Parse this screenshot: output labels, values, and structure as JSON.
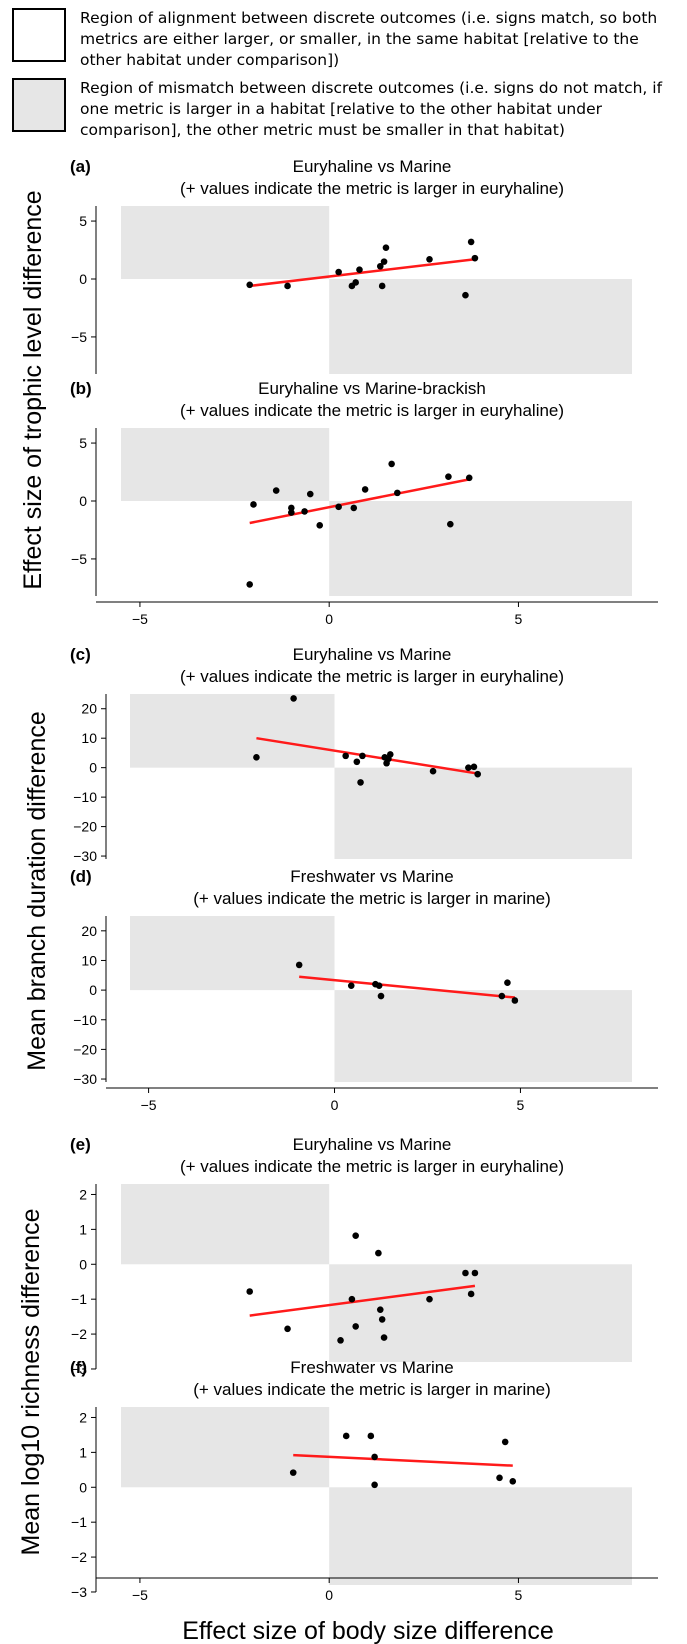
{
  "legend": [
    {
      "fill": "#ffffff",
      "text": "Region of alignment between discrete outcomes (i.e. signs match, so both metrics are either larger, or smaller, in the same habitat [relative to the other habitat under comparison])"
    },
    {
      "fill": "#e6e6e6",
      "text": "Region of mismatch between discrete outcomes (i.e. signs do not match, if one metric is larger in a habitat [relative to the other habitat under comparison], the other metric must be smaller in that habitat)"
    }
  ],
  "colors": {
    "mismatch_region": "#e6e6e6",
    "points": "#000000",
    "fit_line": "#ff1a1a"
  },
  "ylabels": [
    "Effect size of trophic level difference",
    "Mean branch duration difference",
    "Mean log10 richness difference"
  ],
  "xlabel": "Effect size of body size difference",
  "chart_data": [
    {
      "type": "scatter",
      "panel": "(a)",
      "title": "Euryhaline vs Marine",
      "subtitle": "(+ values indicate the metric is larger in euryhaline)",
      "xlim": [
        -5.5,
        8
      ],
      "ylim": [
        -8.2,
        6.3
      ],
      "xticks": [],
      "yticks": [
        -5,
        0,
        5
      ],
      "x": [
        -2.1,
        -1.1,
        0.25,
        0.6,
        0.7,
        0.8,
        1.35,
        1.4,
        1.45,
        1.5,
        2.65,
        3.6,
        3.75,
        3.85
      ],
      "y": [
        -0.5,
        -0.6,
        0.6,
        -0.6,
        -0.3,
        0.8,
        1.1,
        -0.6,
        1.5,
        2.7,
        1.7,
        -1.4,
        3.2,
        1.8
      ],
      "fit": {
        "x": [
          -2.1,
          3.85
        ],
        "y": [
          -0.6,
          1.7
        ]
      }
    },
    {
      "type": "scatter",
      "panel": "(b)",
      "title": "Euryhaline vs Marine-brackish",
      "subtitle": "(+ values indicate the metric is larger in euryhaline)",
      "xlim": [
        -5.5,
        8
      ],
      "ylim": [
        -8.2,
        6.3
      ],
      "xticks": [
        -5,
        0,
        5
      ],
      "yticks": [
        -5,
        0,
        5
      ],
      "x": [
        -2.1,
        -2.0,
        -1.4,
        -1.0,
        -1.0,
        -0.65,
        -0.5,
        -0.25,
        0.25,
        0.65,
        0.95,
        1.65,
        1.8,
        3.15,
        3.2,
        3.7
      ],
      "y": [
        -7.2,
        -0.3,
        0.9,
        -0.6,
        -1.0,
        -0.9,
        0.6,
        -2.1,
        -0.5,
        -0.6,
        1.0,
        3.2,
        0.7,
        2.1,
        -2.0,
        2.0
      ],
      "fit": {
        "x": [
          -2.1,
          3.75
        ],
        "y": [
          -1.9,
          1.9
        ]
      }
    },
    {
      "type": "scatter",
      "panel": "(c)",
      "title": "Euryhaline vs Marine",
      "subtitle": "(+ values indicate the metric is larger in euryhaline)",
      "xlim": [
        -5.5,
        8
      ],
      "ylim": [
        -31,
        25
      ],
      "xticks": [],
      "yticks": [
        -30,
        -20,
        -10,
        0,
        10,
        20
      ],
      "x": [
        -2.1,
        -1.1,
        0.3,
        0.6,
        0.7,
        0.75,
        1.35,
        1.4,
        1.45,
        1.5,
        2.65,
        3.6,
        3.75,
        3.85
      ],
      "y": [
        3.5,
        23.5,
        4.0,
        2.0,
        -5.0,
        4.0,
        3.5,
        1.5,
        3.0,
        4.5,
        -1.2,
        0.0,
        0.3,
        -2.2
      ],
      "fit": {
        "x": [
          -2.1,
          3.85
        ],
        "y": [
          10.0,
          -2.0
        ]
      }
    },
    {
      "type": "scatter",
      "panel": "(d)",
      "title": "Freshwater vs Marine",
      "subtitle": "(+ values indicate the metric is larger in marine)",
      "xlim": [
        -5.5,
        8
      ],
      "ylim": [
        -31,
        25
      ],
      "xticks": [
        -5,
        0,
        5
      ],
      "yticks": [
        -30,
        -20,
        -10,
        0,
        10,
        20
      ],
      "x": [
        -0.95,
        0.45,
        1.1,
        1.2,
        1.25,
        4.5,
        4.65,
        4.85
      ],
      "y": [
        8.5,
        1.5,
        2.0,
        1.5,
        -2.0,
        -2.0,
        2.5,
        -3.5
      ],
      "fit": {
        "x": [
          -0.95,
          4.85
        ],
        "y": [
          4.5,
          -2.5
        ]
      }
    },
    {
      "type": "scatter",
      "panel": "(e)",
      "title": "Euryhaline vs Marine",
      "subtitle": "(+ values indicate the metric is larger in euryhaline)",
      "xlim": [
        -5.5,
        8
      ],
      "ylim": [
        -2.8,
        2.3
      ],
      "xticks": [],
      "yticks": [
        -3,
        -2,
        -1,
        0,
        1,
        2
      ],
      "x": [
        -2.1,
        -1.1,
        0.3,
        0.6,
        0.7,
        0.7,
        1.3,
        1.35,
        1.4,
        1.45,
        2.65,
        3.6,
        3.75,
        3.85
      ],
      "y": [
        -0.78,
        -1.85,
        -2.18,
        -1.0,
        -1.78,
        0.82,
        0.32,
        -1.3,
        -1.58,
        -2.1,
        -1.0,
        -0.25,
        -0.85,
        -0.25
      ],
      "fit": {
        "x": [
          -2.1,
          3.85
        ],
        "y": [
          -1.47,
          -0.62
        ]
      }
    },
    {
      "type": "scatter",
      "panel": "(f)",
      "title": "Freshwater vs Marine",
      "subtitle": "(+ values indicate the metric is larger in marine)",
      "xlim": [
        -5.5,
        8
      ],
      "ylim": [
        -2.8,
        2.3
      ],
      "xticks": [
        -5,
        0,
        5
      ],
      "yticks": [
        -3,
        -2,
        -1,
        0,
        1,
        2
      ],
      "x": [
        -0.95,
        0.45,
        1.1,
        1.2,
        1.2,
        4.5,
        4.65,
        4.85
      ],
      "y": [
        0.42,
        1.47,
        1.47,
        0.87,
        0.07,
        0.27,
        1.3,
        0.17
      ],
      "fit": {
        "x": [
          -0.95,
          4.85
        ],
        "y": [
          0.92,
          0.62
        ]
      }
    }
  ]
}
